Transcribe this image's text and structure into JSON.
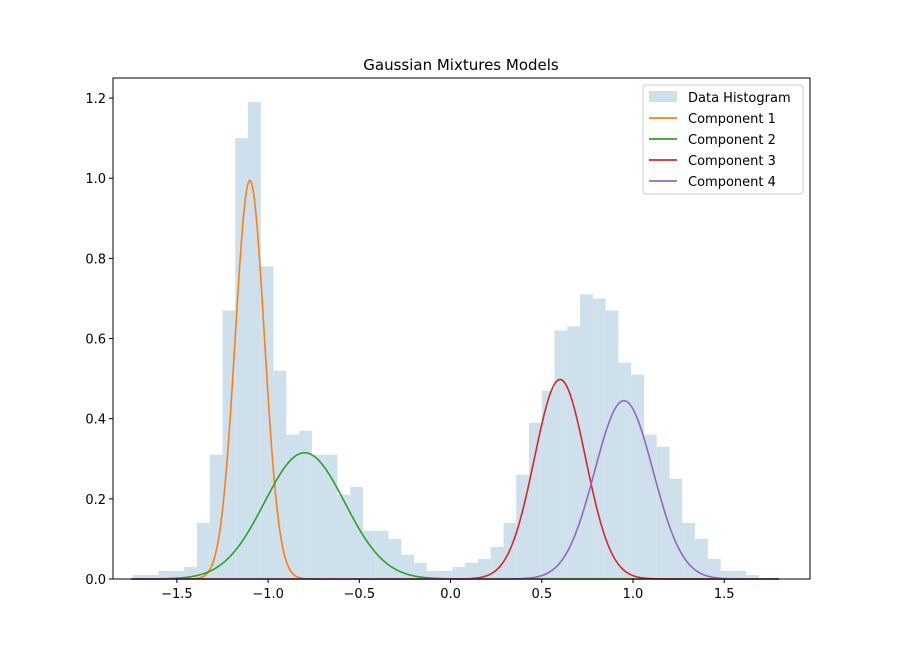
{
  "chart_data": {
    "type": "line",
    "title": "Gaussian Mixtures Models",
    "xlabel": "",
    "ylabel": "",
    "xlim": [
      -1.85,
      1.97
    ],
    "ylim": [
      0,
      1.25
    ],
    "xticks": [
      -1.5,
      -1.0,
      -0.5,
      0.0,
      0.5,
      1.0,
      1.5
    ],
    "xtick_labels": [
      "−1.5",
      "−1.0",
      "−0.5",
      "0.0",
      "0.5",
      "1.0",
      "1.5"
    ],
    "yticks": [
      0.0,
      0.2,
      0.4,
      0.6,
      0.8,
      1.0,
      1.2
    ],
    "ytick_labels": [
      "0.0",
      "0.2",
      "0.4",
      "0.6",
      "0.8",
      "1.0",
      "1.2"
    ],
    "grid": false,
    "legend_position": "top-right",
    "histogram": {
      "name": "Data Histogram",
      "color": "#cfe0ed",
      "bin_edges": [
        -1.74,
        -1.67,
        -1.6,
        -1.53,
        -1.46,
        -1.39,
        -1.32,
        -1.25,
        -1.18,
        -1.11,
        -1.04,
        -0.97,
        -0.9,
        -0.83,
        -0.76,
        -0.69,
        -0.62,
        -0.55,
        -0.48,
        -0.41,
        -0.34,
        -0.27,
        -0.2,
        -0.13,
        -0.06,
        0.01,
        0.08,
        0.15,
        0.22,
        0.29,
        0.36,
        0.43,
        0.5,
        0.57,
        0.64,
        0.71,
        0.78,
        0.85,
        0.92,
        0.99,
        1.06,
        1.13,
        1.2,
        1.27,
        1.34,
        1.41,
        1.48,
        1.55,
        1.62,
        1.69,
        1.76
      ],
      "values": [
        0.01,
        0.01,
        0.02,
        0.02,
        0.03,
        0.14,
        0.31,
        0.67,
        1.1,
        1.19,
        0.78,
        0.52,
        0.36,
        0.37,
        0.31,
        0.31,
        0.21,
        0.23,
        0.12,
        0.12,
        0.1,
        0.06,
        0.04,
        0.02,
        0.02,
        0.03,
        0.04,
        0.05,
        0.08,
        0.14,
        0.26,
        0.39,
        0.47,
        0.62,
        0.63,
        0.71,
        0.7,
        0.67,
        0.54,
        0.51,
        0.36,
        0.33,
        0.25,
        0.14,
        0.1,
        0.05,
        0.02,
        0.02,
        0.01,
        0.0
      ]
    },
    "x_range": [
      -1.75,
      1.8
    ],
    "series": [
      {
        "name": "Component 1",
        "color": "#ff7f0e",
        "mean": -1.1,
        "std": 0.08,
        "peak": 0.995
      },
      {
        "name": "Component 2",
        "color": "#2ca02c",
        "mean": -0.8,
        "std": 0.22,
        "peak": 0.315
      },
      {
        "name": "Component 3",
        "color": "#d62728",
        "mean": 0.6,
        "std": 0.14,
        "peak": 0.498
      },
      {
        "name": "Component 4",
        "color": "#9467bd",
        "mean": 0.95,
        "std": 0.16,
        "peak": 0.445
      }
    ]
  }
}
